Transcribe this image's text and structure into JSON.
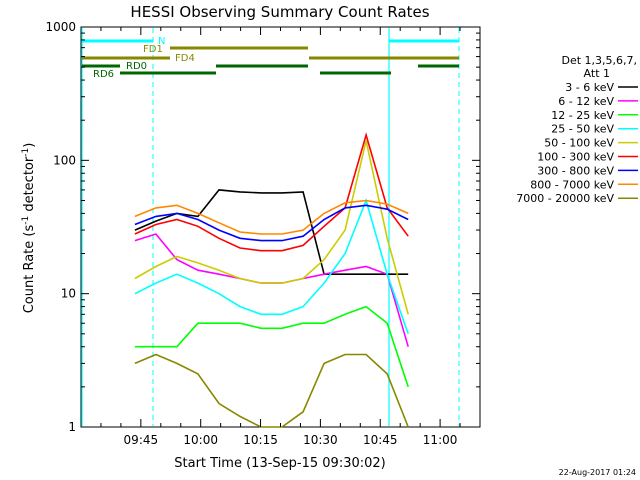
{
  "chart_data": {
    "type": "line",
    "title": "HESSI Observing Summary Count Rates",
    "xlabel": "Start Time (13-Sep-15 09:30:02)",
    "ylabel_main": "Count Rate (s",
    "ylabel_sup1": "-1",
    "ylabel_mid": " detector",
    "ylabel_sup2": "-1",
    "ylabel_end": ")",
    "yscale": "log",
    "ylim": [
      1,
      1000
    ],
    "xlim_minutes": [
      0,
      100
    ],
    "x_tick_labels": [
      "09:45",
      "10:00",
      "10:15",
      "10:30",
      "10:45",
      "11:00"
    ],
    "x_tick_minutes": [
      15,
      30,
      45,
      60,
      75,
      90
    ],
    "y_tick_labels": [
      "1",
      "10",
      "100",
      "1000"
    ],
    "y_tick_values": [
      1,
      10,
      100,
      1000
    ],
    "legend_title_1": "Det 1,3,5,6,7,",
    "legend_title_2": "Att 1",
    "legend_position": "right",
    "footer_date": "22-Aug-2017 01:24",
    "flag_labels": [
      "N",
      "FD1",
      "FD4",
      "RD0",
      "RD6"
    ],
    "series": [
      {
        "name": "3 - 6 keV",
        "color": "#000000",
        "values": [
          30,
          35,
          40,
          38,
          60,
          58,
          57,
          57,
          58,
          14,
          14,
          14,
          14,
          14
        ]
      },
      {
        "name": "6 - 12 keV",
        "color": "#ff00ff",
        "values": [
          25,
          28,
          18,
          15,
          14,
          13,
          12,
          12,
          13,
          14,
          15,
          16,
          14,
          4
        ]
      },
      {
        "name": "12 - 25 keV",
        "color": "#00ff00",
        "values": [
          4,
          4,
          4,
          6,
          6,
          6,
          5.5,
          5.5,
          6,
          6,
          7,
          8,
          6,
          2
        ]
      },
      {
        "name": "25 - 50 keV",
        "color": "#00ffff",
        "values": [
          10,
          12,
          14,
          12,
          10,
          8,
          7,
          7,
          8,
          12,
          20,
          50,
          14,
          5
        ]
      },
      {
        "name": "50 - 100 keV",
        "color": "#cccc00",
        "values": [
          13,
          16,
          19,
          17,
          15,
          13,
          12,
          12,
          13,
          18,
          30,
          140,
          26,
          7
        ]
      },
      {
        "name": "100 - 300 keV",
        "color": "#ff0000",
        "values": [
          28,
          33,
          36,
          32,
          26,
          22,
          21,
          21,
          23,
          32,
          44,
          155,
          44,
          27
        ]
      },
      {
        "name": "300 - 800 keV",
        "color": "#0000ff",
        "values": [
          33,
          38,
          40,
          36,
          30,
          26,
          25,
          25,
          27,
          36,
          44,
          46,
          43,
          36
        ]
      },
      {
        "name": "800 - 7000 keV",
        "color": "#ff8800",
        "values": [
          38,
          44,
          46,
          40,
          34,
          29,
          28,
          28,
          30,
          40,
          48,
          50,
          47,
          40
        ]
      },
      {
        "name": "7000 - 20000 keV",
        "color": "#888800",
        "values": [
          3,
          3.5,
          3,
          2.5,
          1.5,
          1.2,
          1,
          1,
          1.3,
          3,
          3.5,
          3.5,
          2.5,
          1
        ]
      }
    ]
  }
}
